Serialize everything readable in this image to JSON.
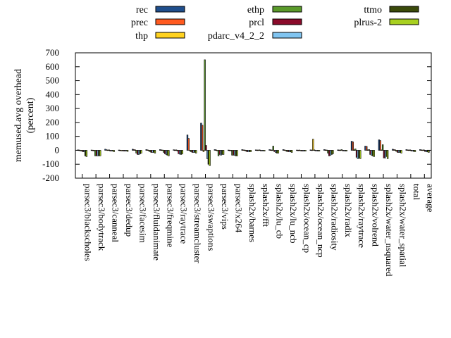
{
  "chart_data": {
    "type": "bar",
    "ylabel": "memused.avg overhead\n(percent)",
    "ylabel_lines": [
      "memused.avg overhead",
      "(percent)"
    ],
    "ylim": [
      -200,
      700
    ],
    "yticks": [
      -200,
      -100,
      0,
      100,
      200,
      300,
      400,
      500,
      600,
      700
    ],
    "legend_placement": "top",
    "categories": [
      "parsec3/blackscholes",
      "parsec3/bodytrack",
      "parsec3/canneal",
      "parsec3/dedup",
      "parsec3/facesim",
      "parsec3/fluidanimate",
      "parsec3/freqmine",
      "parsec3/raytrace",
      "parsec3/streamcluster",
      "parsec3/swaptions",
      "parsec3/vips",
      "parsec3/x264",
      "splash2x/barnes",
      "splash2x/fft",
      "splash2x/lu_cb",
      "splash2x/lu_ncb",
      "splash2x/ocean_cp",
      "splash2x/ocean_ncp",
      "splash2x/radiosity",
      "splash2x/radix",
      "splash2x/raytrace",
      "splash2x/volrend",
      "splash2x/water_nsquared",
      "splash2x/water_spatial",
      "total",
      "average"
    ],
    "series": [
      {
        "name": "rec",
        "color": "#1f4e8c",
        "values": [
          3,
          2,
          8,
          2,
          8,
          5,
          5,
          4,
          110,
          195,
          5,
          2,
          5,
          3,
          5,
          5,
          2,
          3,
          5,
          3,
          65,
          30,
          75,
          8,
          5,
          5
        ]
      },
      {
        "name": "prec",
        "color": "#ff5a1f",
        "values": [
          2,
          1,
          4,
          1,
          5,
          3,
          3,
          2,
          85,
          180,
          3,
          1,
          3,
          2,
          3,
          3,
          1,
          2,
          3,
          2,
          60,
          28,
          70,
          5,
          3,
          3
        ]
      },
      {
        "name": "thp",
        "color": "#ffd21f",
        "values": [
          -2,
          -3,
          2,
          -2,
          3,
          -3,
          2,
          3,
          -5,
          -10,
          -2,
          -2,
          2,
          2,
          2,
          -2,
          2,
          80,
          2,
          2,
          3,
          3,
          3,
          3,
          2,
          2
        ]
      },
      {
        "name": "ethp",
        "color": "#5a9a2a",
        "values": [
          -5,
          -40,
          3,
          -3,
          -20,
          -10,
          -15,
          -5,
          -10,
          650,
          -40,
          -35,
          -5,
          3,
          30,
          -8,
          -3,
          3,
          -20,
          5,
          10,
          5,
          40,
          -8,
          3,
          3
        ]
      },
      {
        "name": "prcl",
        "color": "#8a0a2a",
        "values": [
          -10,
          -40,
          -5,
          -5,
          -30,
          -15,
          -25,
          -25,
          -15,
          35,
          -30,
          -35,
          -10,
          -3,
          -10,
          -10,
          -5,
          -3,
          -40,
          -3,
          -50,
          -30,
          -55,
          -15,
          -5,
          -8
        ]
      },
      {
        "name": "pdarc_v4_2_2",
        "color": "#80c4f0",
        "values": [
          -10,
          -40,
          -5,
          -5,
          -30,
          -15,
          -30,
          -28,
          -15,
          -60,
          -35,
          -35,
          -10,
          -3,
          -15,
          -10,
          -5,
          -3,
          -35,
          -3,
          -60,
          -35,
          -55,
          -15,
          -5,
          -10
        ]
      },
      {
        "name": "ttmo",
        "color": "#3a4a0a",
        "values": [
          -40,
          -40,
          -5,
          -5,
          -25,
          -15,
          -35,
          -30,
          -15,
          -100,
          -30,
          -40,
          -10,
          -3,
          -20,
          -12,
          -5,
          -5,
          -30,
          -5,
          -55,
          -40,
          -45,
          -15,
          -8,
          -12
        ]
      },
      {
        "name": "plrus-2",
        "color": "#a8d020",
        "values": [
          -45,
          -40,
          -10,
          -8,
          -20,
          -20,
          -40,
          -25,
          -20,
          -110,
          -30,
          -40,
          -10,
          -5,
          -20,
          -15,
          -5,
          -5,
          -25,
          -5,
          -60,
          -45,
          -60,
          -20,
          -10,
          -15
        ]
      }
    ]
  }
}
